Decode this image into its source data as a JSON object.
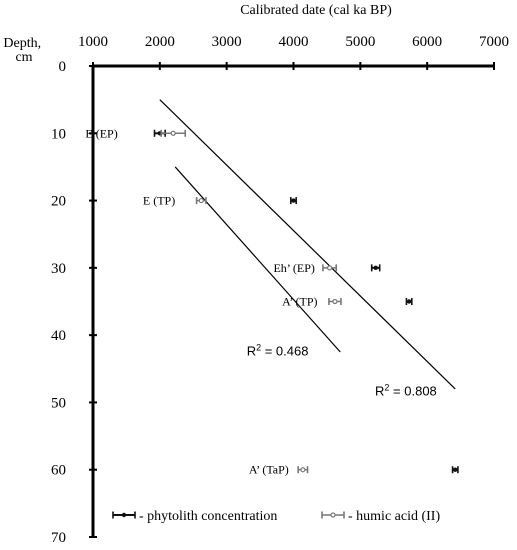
{
  "chart_data": {
    "type": "scatter",
    "title": "",
    "xlabel": "Calibrated  date (cal ka BP)",
    "ylabel": [
      "Depth,",
      "cm"
    ],
    "xlim": [
      1000,
      7000
    ],
    "ylim": [
      0,
      70
    ],
    "x_ticks": [
      1000,
      2000,
      3000,
      4000,
      5000,
      6000,
      7000
    ],
    "y_ticks": [
      0,
      10,
      20,
      30,
      40,
      50,
      60,
      70
    ],
    "x_axis_position": "top",
    "y_axis_inverted": true,
    "grid": false,
    "legend_position": "bottom",
    "colors": {
      "phytolith": "#111111",
      "humic": "#777777",
      "axis": "#000000"
    },
    "series": [
      {
        "name": "- phytolith concentration",
        "marker": "filled-circle",
        "points": [
          {
            "x": 2000,
            "xerr": 80,
            "y": 10
          },
          {
            "x": 4000,
            "xerr": 40,
            "y": 20
          },
          {
            "x": 5230,
            "xerr": 60,
            "y": 30
          },
          {
            "x": 5730,
            "xerr": 40,
            "y": 35
          },
          {
            "x": 6420,
            "xerr": 40,
            "y": 60
          }
        ]
      },
      {
        "name": "- humic acid (II)",
        "marker": "open-circle",
        "points": [
          {
            "x": 2200,
            "xerr": 180,
            "y": 10
          },
          {
            "x": 2620,
            "xerr": 70,
            "y": 20
          },
          {
            "x": 4540,
            "xerr": 100,
            "y": 30
          },
          {
            "x": 4620,
            "xerr": 90,
            "y": 35
          },
          {
            "x": 4140,
            "xerr": 70,
            "y": 60
          }
        ]
      }
    ],
    "annotations": [
      {
        "text": "E (EP)",
        "x": 1370,
        "y": 10
      },
      {
        "text": "E (TP)",
        "x": 2230,
        "y": 20
      },
      {
        "text": "Eh’ (EP)",
        "x": 4320,
        "y": 30
      },
      {
        "text": "A’ (TP)",
        "x": 4360,
        "y": 35
      },
      {
        "text": "A’ (TaP)",
        "x": 3930,
        "y": 60
      }
    ],
    "trendlines": [
      {
        "x1": 2000,
        "y1": 5,
        "x2": 6420,
        "y2": 48,
        "label_prefix": "R",
        "label_exp": "2",
        "label_value": " = 0.808",
        "label_x": 5220,
        "label_y": 49
      },
      {
        "x1": 2230,
        "y1": 15,
        "x2": 4700,
        "y2": 42.5,
        "label_prefix": "R",
        "label_exp": "2",
        "label_value": " = 0.468",
        "label_x": 3300,
        "label_y": 43
      }
    ]
  }
}
